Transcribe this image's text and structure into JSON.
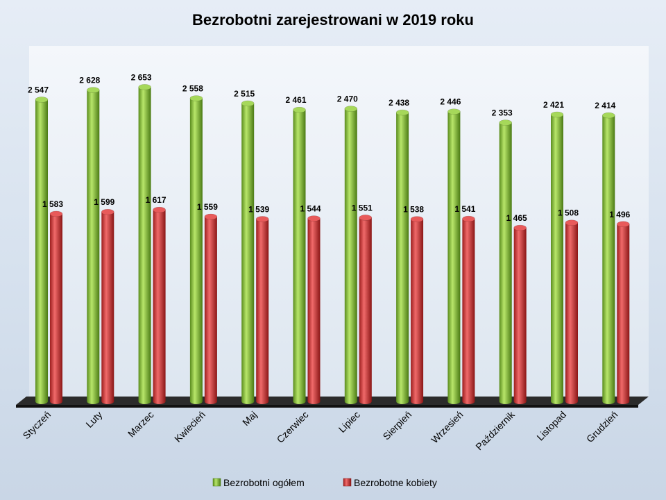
{
  "chart_data": {
    "type": "bar",
    "title": "Bezrobotni zarejestrowani w 2019 roku",
    "categories": [
      "Styczeń",
      "Luty",
      "Marzec",
      "Kwiecień",
      "Maj",
      "Czerwiec",
      "Lipiec",
      "Sierpień",
      "Wrzesień",
      "Październik",
      "Listopad",
      "Grudzień"
    ],
    "series": [
      {
        "name": "Bezrobotni ogółem",
        "color": "#8cc63e",
        "values": [
          2547,
          2628,
          2653,
          2558,
          2515,
          2461,
          2470,
          2438,
          2446,
          2353,
          2421,
          2414
        ],
        "labels": [
          "2 547",
          "2 628",
          "2 653",
          "2 558",
          "2 515",
          "2 461",
          "2 470",
          "2 438",
          "2 446",
          "2 353",
          "2 421",
          "2 414"
        ]
      },
      {
        "name": "Bezrobotne kobiety",
        "color": "#d93a3a",
        "values": [
          1583,
          1599,
          1617,
          1559,
          1539,
          1544,
          1551,
          1538,
          1541,
          1465,
          1508,
          1496
        ],
        "labels": [
          "1 583",
          "1 599",
          "1 617",
          "1 559",
          "1 539",
          "1 544",
          "1 551",
          "1 538",
          "1 541",
          "1 465",
          "1 508",
          "1 496"
        ]
      }
    ],
    "ylim": [
      0,
      3000
    ],
    "grid": false,
    "legend_position": "bottom",
    "data_labels": true,
    "style": "3d-cylinder"
  }
}
